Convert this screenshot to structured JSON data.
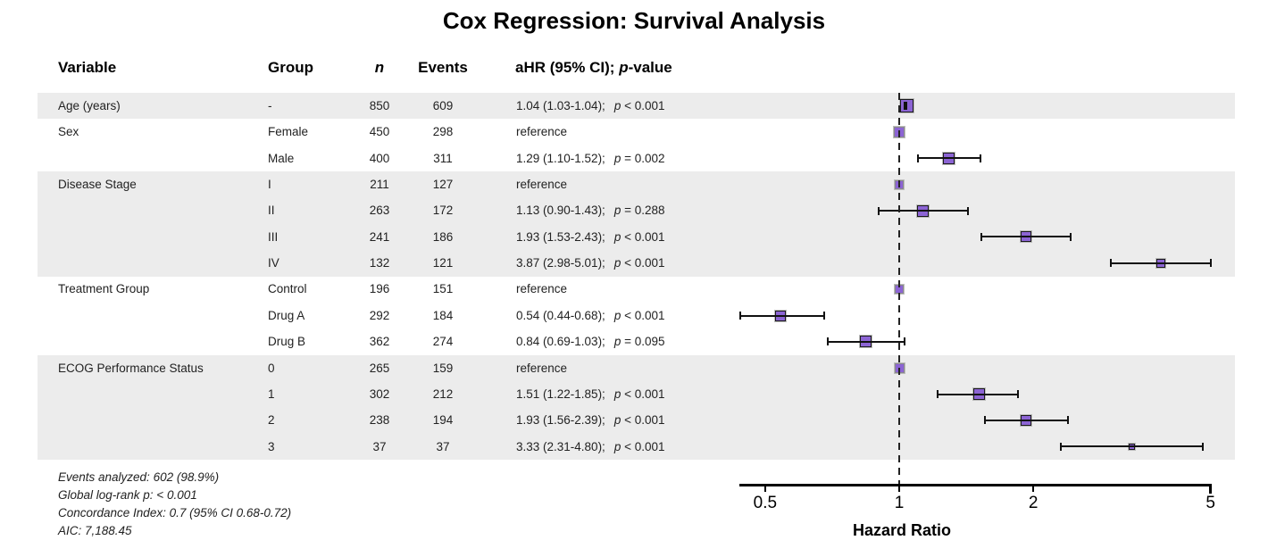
{
  "title": "Cox Regression: Survival Analysis",
  "colors": {
    "stripe": "#ececec",
    "marker_fill": "#8c64d4",
    "marker_edge": "#1a1a1a",
    "ref_marker_edge": "#8a8a8a",
    "marker_halo": "#bdbdbd",
    "ci_line": "#111111",
    "reference_line": "#222222",
    "axis": "#000000",
    "text": "#1a1a1a"
  },
  "chart_data": {
    "type": "scatter",
    "subtype": "forest-plot",
    "title": "Cox Regression: Survival Analysis",
    "xlabel": "Hazard Ratio",
    "xscale": "log",
    "xlim": [
      0.44,
      5.05
    ],
    "reference_value": 1,
    "grid": "off",
    "xticks": [
      {
        "label": "0.5",
        "value": 0.5
      },
      {
        "label": "1",
        "value": 1
      },
      {
        "label": "2",
        "value": 2
      },
      {
        "label": "5",
        "value": 5
      }
    ],
    "columns": {
      "variable": "Variable",
      "group": "Group",
      "n": "n",
      "events": "Events",
      "ahr": {
        "prefix": "aHR (95% CI); ",
        "p": "p",
        "suffix": "-value"
      }
    },
    "rows": [
      {
        "variable": "Age (years)",
        "group": "-",
        "n": "850",
        "events": "609",
        "est": "1.04 (1.03-1.04);",
        "p": "< 0.001",
        "hr": 1.04,
        "lo": 1.03,
        "hi": 1.04,
        "ref": false,
        "band": "gray",
        "size": 15
      },
      {
        "variable": "Sex",
        "group": "Female",
        "n": "450",
        "events": "298",
        "est": "reference",
        "p": "",
        "hr": 1,
        "lo": null,
        "hi": null,
        "ref": true,
        "band": "white",
        "size": 12
      },
      {
        "variable": "",
        "group": "Male",
        "n": "400",
        "events": "311",
        "est": "1.29 (1.10-1.52);",
        "p": "= 0.002",
        "hr": 1.29,
        "lo": 1.1,
        "hi": 1.52,
        "ref": false,
        "band": "white",
        "size": 13
      },
      {
        "variable": "Disease Stage",
        "group": "I",
        "n": "211",
        "events": "127",
        "est": "reference",
        "p": "",
        "hr": 1,
        "lo": null,
        "hi": null,
        "ref": true,
        "band": "gray",
        "size": 10
      },
      {
        "variable": "",
        "group": "II",
        "n": "263",
        "events": "172",
        "est": "1.13 (0.90-1.43);",
        "p": "= 0.288",
        "hr": 1.13,
        "lo": 0.9,
        "hi": 1.43,
        "ref": false,
        "band": "gray",
        "size": 13
      },
      {
        "variable": "",
        "group": "III",
        "n": "241",
        "events": "186",
        "est": "1.93 (1.53-2.43);",
        "p": "< 0.001",
        "hr": 1.93,
        "lo": 1.53,
        "hi": 2.43,
        "ref": false,
        "band": "gray",
        "size": 12
      },
      {
        "variable": "",
        "group": "IV",
        "n": "132",
        "events": "121",
        "est": "3.87 (2.98-5.01);",
        "p": "< 0.001",
        "hr": 3.87,
        "lo": 2.98,
        "hi": 5.01,
        "ref": false,
        "band": "gray",
        "size": 10
      },
      {
        "variable": "Treatment Group",
        "group": "Control",
        "n": "196",
        "events": "151",
        "est": "reference",
        "p": "",
        "hr": 1,
        "lo": null,
        "hi": null,
        "ref": true,
        "band": "white",
        "size": 10
      },
      {
        "variable": "",
        "group": "Drug A",
        "n": "292",
        "events": "184",
        "est": "0.54 (0.44-0.68);",
        "p": "< 0.001",
        "hr": 0.54,
        "lo": 0.44,
        "hi": 0.68,
        "ref": false,
        "band": "white",
        "size": 12
      },
      {
        "variable": "",
        "group": "Drug B",
        "n": "362",
        "events": "274",
        "est": "0.84 (0.69-1.03);",
        "p": "= 0.095",
        "hr": 0.84,
        "lo": 0.69,
        "hi": 1.03,
        "ref": false,
        "band": "white",
        "size": 13
      },
      {
        "variable": "ECOG Performance Status",
        "group": "0",
        "n": "265",
        "events": "159",
        "est": "reference",
        "p": "",
        "hr": 1,
        "lo": null,
        "hi": null,
        "ref": true,
        "band": "gray",
        "size": 11
      },
      {
        "variable": "",
        "group": "1",
        "n": "302",
        "events": "212",
        "est": "1.51 (1.22-1.85);",
        "p": "< 0.001",
        "hr": 1.51,
        "lo": 1.22,
        "hi": 1.85,
        "ref": false,
        "band": "gray",
        "size": 13
      },
      {
        "variable": "",
        "group": "2",
        "n": "238",
        "events": "194",
        "est": "1.93 (1.56-2.39);",
        "p": "< 0.001",
        "hr": 1.93,
        "lo": 1.56,
        "hi": 2.39,
        "ref": false,
        "band": "gray",
        "size": 12
      },
      {
        "variable": "",
        "group": "3",
        "n": "37",
        "events": "37",
        "est": "3.33 (2.31-4.80);",
        "p": "< 0.001",
        "hr": 3.33,
        "lo": 2.31,
        "hi": 4.8,
        "ref": false,
        "band": "gray",
        "size": 7
      }
    ],
    "footnotes": [
      "Events analyzed: 602 (98.9%)",
      "Global log-rank p: < 0.001",
      "Concordance Index: 0.7 (95% CI 0.68-0.72)",
      "AIC: 7,188.45"
    ]
  }
}
